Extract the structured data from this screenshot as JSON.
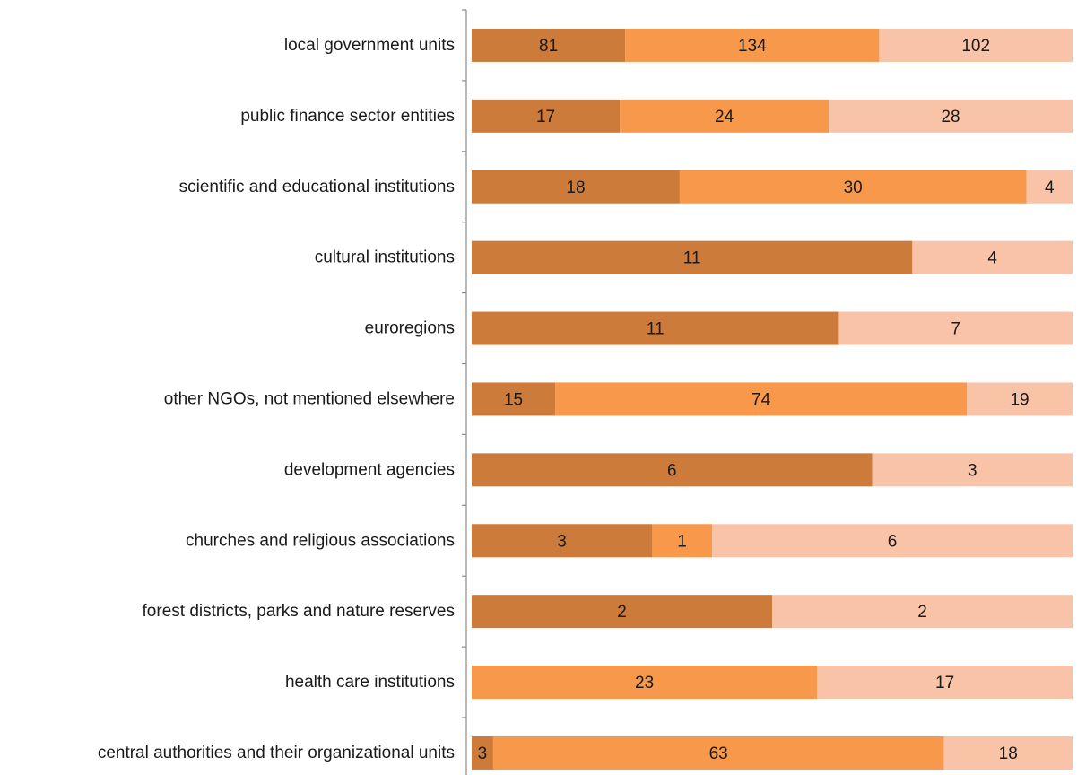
{
  "chart_data": {
    "type": "bar",
    "orientation": "horizontal",
    "stacking": "percent",
    "legend": "none",
    "grid": false,
    "colors": [
      "#cd7b3a",
      "#f7984a",
      "#f9c3a7"
    ],
    "categories": [
      "local government units",
      "public finance sector entities",
      "scientific and educational institutions",
      "cultural institutions",
      "euroregions",
      "other NGOs, not mentioned elsewhere",
      "development agencies",
      "churches and religious associations",
      "forest districts, parks and nature reserves",
      "health care institutions",
      "central authorities and their organizational units"
    ],
    "series": [
      {
        "values": [
          81,
          17,
          18,
          11,
          11,
          15,
          6,
          3,
          2,
          0,
          3
        ]
      },
      {
        "values": [
          134,
          24,
          30,
          0,
          0,
          74,
          0,
          1,
          0,
          23,
          63
        ]
      },
      {
        "values": [
          102,
          28,
          4,
          4,
          7,
          19,
          3,
          6,
          2,
          17,
          18
        ]
      }
    ]
  }
}
